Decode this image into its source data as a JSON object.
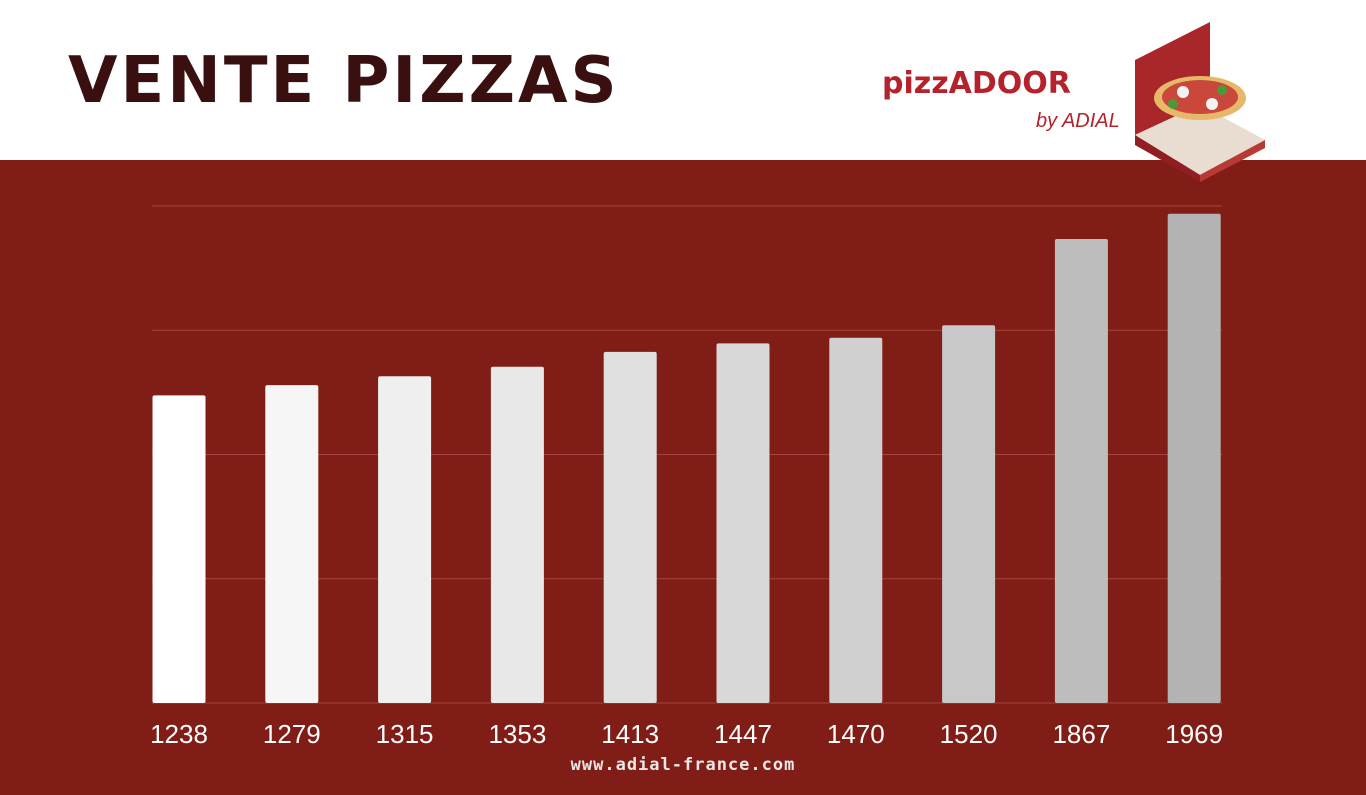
{
  "chart_data": {
    "type": "bar",
    "title": "VENTE PIZZAS",
    "values": [
      1238,
      1279,
      1315,
      1353,
      1413,
      1447,
      1470,
      1520,
      1867,
      1969
    ],
    "colors": [
      "#ffffff",
      "#f6f6f6",
      "#efefef",
      "#e8e8e8",
      "#e0e0e0",
      "#d8d8d8",
      "#d0d0d0",
      "#c8c8c8",
      "#bdbdbd",
      "#b3b3b3"
    ],
    "ylim": [
      0,
      2000
    ],
    "yticks": [
      0,
      500,
      1000,
      1500,
      2000
    ],
    "grid": true,
    "logo": {
      "brand": "pizzADOOR",
      "tagline": "by ADIAL"
    },
    "footer": "www.adial-france.com"
  }
}
